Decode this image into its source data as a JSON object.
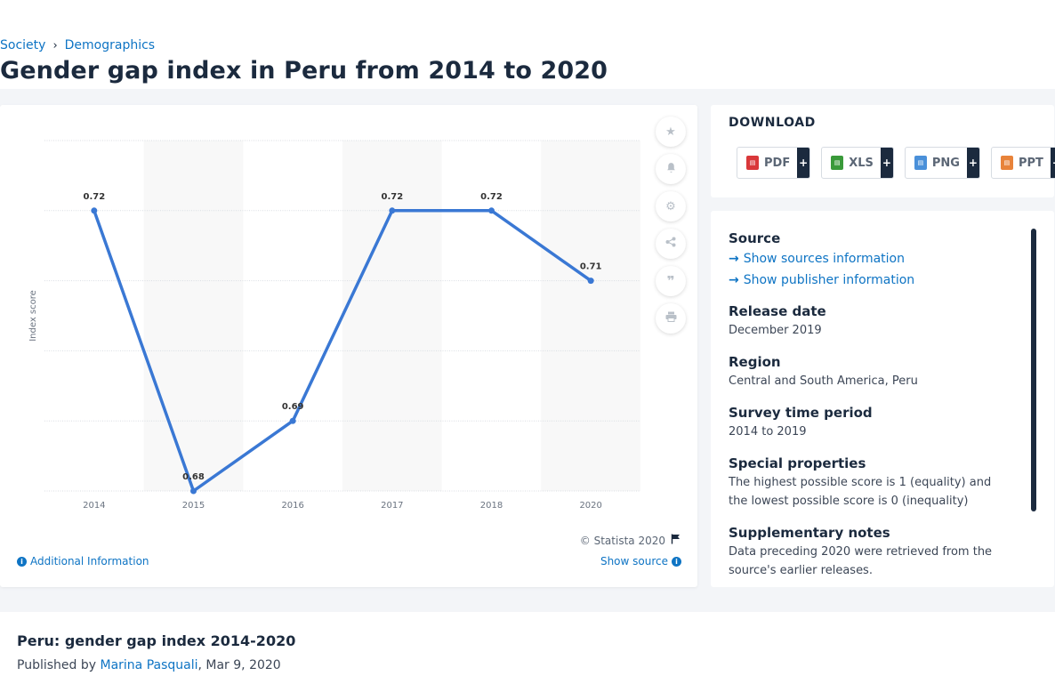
{
  "breadcrumb": {
    "items": [
      "Society",
      "Demographics"
    ],
    "separator": "›"
  },
  "page_title": "Gender gap index in Peru from 2014 to 2020",
  "chart_data": {
    "type": "line",
    "x": [
      "2014",
      "2015",
      "2016",
      "2017",
      "2018",
      "2020"
    ],
    "values": [
      0.72,
      0.68,
      0.69,
      0.72,
      0.72,
      0.71
    ],
    "value_labels": [
      "0.72",
      "0.68",
      "0.69",
      "0.72",
      "0.72",
      "0.71"
    ],
    "ylabel": "Index score",
    "ylim": [
      0.68,
      0.73
    ],
    "gridlines": [
      0.68,
      0.69,
      0.7,
      0.71,
      0.72,
      0.73
    ],
    "grid": true,
    "line_color": "#3a78d4",
    "alt_band_color": "#f8f8f8"
  },
  "chart_footer": {
    "copyright": "© Statista 2020",
    "additional_info": "Additional Information",
    "show_source": "Show source"
  },
  "tools": [
    "star-icon",
    "bell-icon",
    "gear-icon",
    "share-icon",
    "quote-icon",
    "print-icon"
  ],
  "download": {
    "title": "DOWNLOAD",
    "buttons": [
      {
        "label": "PDF",
        "color": "#d9383a"
      },
      {
        "label": "XLS",
        "color": "#3a9a3a"
      },
      {
        "label": "PNG",
        "color": "#4a90d9"
      },
      {
        "label": "PPT",
        "color": "#e8833a"
      }
    ],
    "plus": "+"
  },
  "info": {
    "source_heading": "Source",
    "show_sources": "Show sources information",
    "show_publisher": "Show publisher information",
    "release_heading": "Release date",
    "release_value": "December 2019",
    "region_heading": "Region",
    "region_value": "Central and South America, Peru",
    "survey_heading": "Survey time period",
    "survey_value": "2014 to 2019",
    "special_heading": "Special properties",
    "special_value": "The highest possible score is 1 (equality) and the lowest possible score is 0 (inequality)",
    "supp_heading": "Supplementary notes",
    "supp_value": "Data preceding 2020 were retrieved from the source's earlier releases."
  },
  "footer": {
    "stat_title": "Peru: gender gap index 2014-2020",
    "published_by": "Published by",
    "author": "Marina Pasquali",
    "date": ", Mar 9, 2020"
  }
}
